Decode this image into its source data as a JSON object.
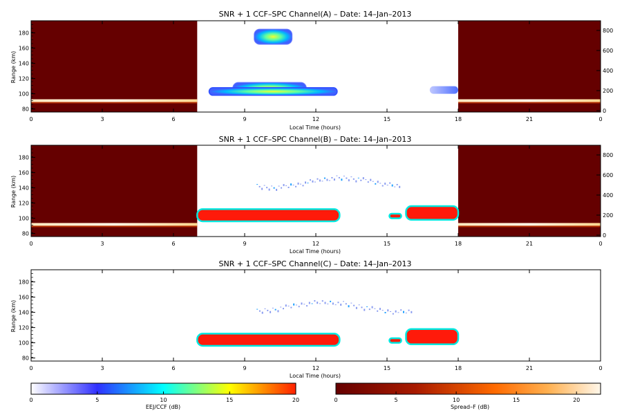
{
  "chart_data": [
    {
      "type": "heatmap",
      "title": "SNR + 1 CCF–SPC Channel(A) – Date: 14–Jan–2013",
      "xlabel": "Local Time (hours)",
      "ylabel": "Range (km)",
      "xlim": [
        0,
        24
      ],
      "ylim": [
        76,
        196
      ],
      "xticks": [
        "0",
        "3",
        "6",
        "9",
        "12",
        "15",
        "18",
        "21",
        "0"
      ],
      "yticks": [
        "80",
        "100",
        "120",
        "140",
        "160",
        "180"
      ],
      "right_axis_ticks": [
        "0",
        "200",
        "400",
        "600",
        "800"
      ],
      "radar_window_hours": [
        7,
        18
      ],
      "spread_f_band": {
        "hours": [
          [
            0,
            7
          ],
          [
            18,
            24
          ]
        ],
        "range_km": 91,
        "scale": "Spread-F (dB)"
      },
      "echo_regions": [
        {
          "hours": [
            9.4,
            11.0
          ],
          "range_km": [
            165,
            185
          ],
          "level": "high"
        },
        {
          "hours": [
            8.5,
            11.6
          ],
          "range_km": [
            100,
            115
          ],
          "level": "high"
        },
        {
          "hours": [
            7.5,
            12.9
          ],
          "range_km": [
            98,
            108
          ],
          "level": "medium"
        },
        {
          "hours": [
            16.8,
            18.0
          ],
          "range_km": [
            100,
            110
          ],
          "level": "low"
        }
      ]
    },
    {
      "type": "heatmap",
      "title": "SNR + 1 CCF–SPC Channel(B) – Date: 14–Jan–2013",
      "xlabel": "Local Time (hours)",
      "ylabel": "Range (km)",
      "xlim": [
        0,
        24
      ],
      "ylim": [
        76,
        196
      ],
      "xticks": [
        "0",
        "3",
        "6",
        "9",
        "12",
        "15",
        "18",
        "21",
        "0"
      ],
      "yticks": [
        "80",
        "100",
        "120",
        "140",
        "160",
        "180"
      ],
      "right_axis_ticks": [
        "0",
        "200",
        "400",
        "600",
        "800"
      ],
      "radar_window_hours": [
        7,
        18
      ],
      "spread_f_band": {
        "hours": [
          [
            0,
            7
          ],
          [
            18,
            24
          ]
        ],
        "range_km": 92,
        "scale": "Spread-F (dB)"
      },
      "echo_regions": [
        {
          "hours": [
            7.0,
            13.0
          ],
          "range_km": [
            96,
            112
          ],
          "level": "saturated"
        },
        {
          "hours": [
            15.1,
            15.6
          ],
          "range_km": [
            100,
            106
          ],
          "level": "saturated"
        },
        {
          "hours": [
            15.8,
            18.0
          ],
          "range_km": [
            98,
            116
          ],
          "level": "saturated"
        },
        {
          "hours": [
            9.5,
            15.5
          ],
          "range_km": [
            135,
            160
          ],
          "level": "weak"
        }
      ]
    },
    {
      "type": "heatmap",
      "title": "SNR + 1 CCF–SPC Channel(C) – Date: 14–Jan–2013",
      "xlabel": "Local Time (hours)",
      "ylabel": "Range (km)",
      "xlim": [
        0,
        24
      ],
      "ylim": [
        76,
        196
      ],
      "xticks": [
        "0",
        "3",
        "6",
        "9",
        "12",
        "15",
        "18",
        "21",
        "0"
      ],
      "yticks": [
        "80",
        "100",
        "120",
        "140",
        "160",
        "180"
      ],
      "radar_window_hours": [
        7,
        18
      ],
      "echo_regions": [
        {
          "hours": [
            7.0,
            13.0
          ],
          "range_km": [
            96,
            112
          ],
          "level": "saturated"
        },
        {
          "hours": [
            15.1,
            15.6
          ],
          "range_km": [
            100,
            106
          ],
          "level": "saturated"
        },
        {
          "hours": [
            15.8,
            18.0
          ],
          "range_km": [
            98,
            118
          ],
          "level": "saturated"
        },
        {
          "hours": [
            9.5,
            16.0
          ],
          "range_km": [
            135,
            160
          ],
          "level": "weak"
        }
      ]
    }
  ],
  "colorbars": [
    {
      "label": "EEJ/CCF (dB)",
      "ticks": [
        "0",
        "5",
        "10",
        "15",
        "20"
      ],
      "range": [
        0,
        20
      ],
      "colors": [
        "#ffffff",
        "#3030ff",
        "#00ffff",
        "#ffff00",
        "#ff2000"
      ]
    },
    {
      "label": "Spread–F (dB)",
      "ticks": [
        "0",
        "5",
        "10",
        "15",
        "20"
      ],
      "range": [
        0,
        22
      ],
      "colors": [
        "#650000",
        "#a81a00",
        "#ff6a00",
        "#ffb050",
        "#fff7ea"
      ]
    }
  ]
}
